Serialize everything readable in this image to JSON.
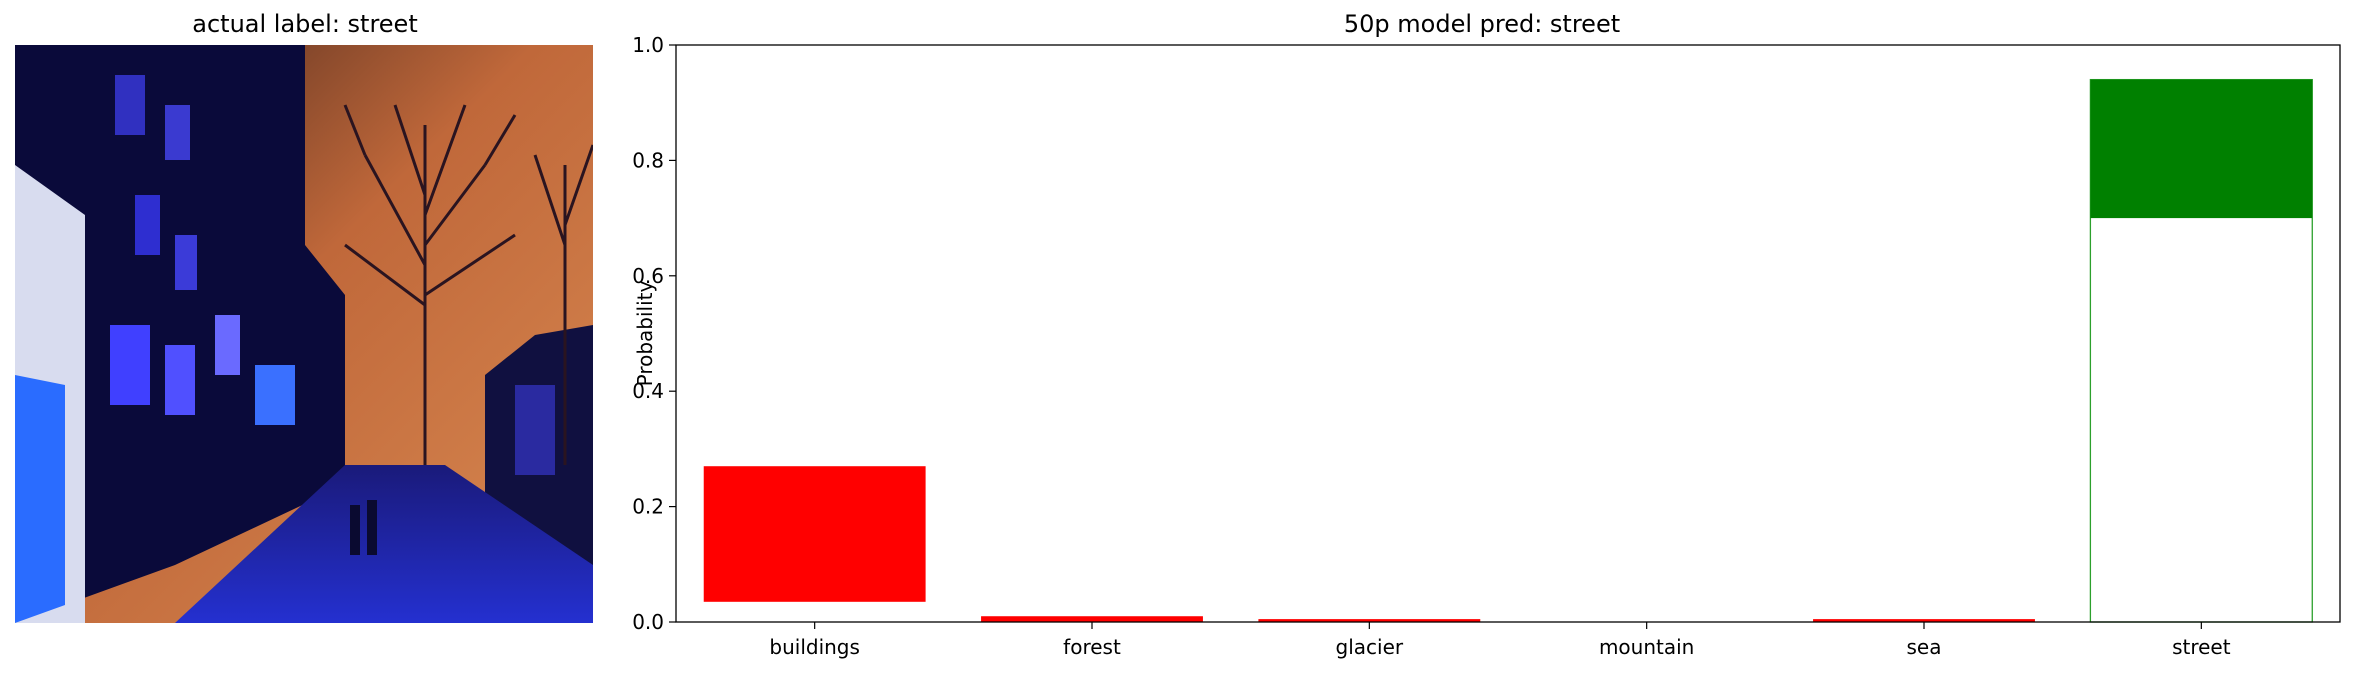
{
  "image_panel": {
    "title": "actual label: street"
  },
  "colors": {
    "wrong_prediction": "#ff0000",
    "correct_prediction": "#008000",
    "true_label_outline": "#2ca02c"
  },
  "chart_data": {
    "type": "bar",
    "title": "50p model pred: street",
    "xlabel": "",
    "ylabel": "Probability",
    "ylim": [
      0,
      1.0
    ],
    "yticks": [
      "0.0",
      "0.2",
      "0.4",
      "0.6",
      "0.8",
      "1.0"
    ],
    "categories": [
      "buildings",
      "forest",
      "glacier",
      "mountain",
      "sea",
      "street"
    ],
    "series": [
      {
        "values": [
          0.27,
          0.01,
          0.005,
          0.0,
          0.005,
          0.94
        ],
        "bottoms": [
          0.035,
          0.0,
          0.0,
          0.0,
          0.0,
          0.7
        ]
      }
    ],
    "predicted_label": "street",
    "actual_label": "street",
    "grid": false
  }
}
